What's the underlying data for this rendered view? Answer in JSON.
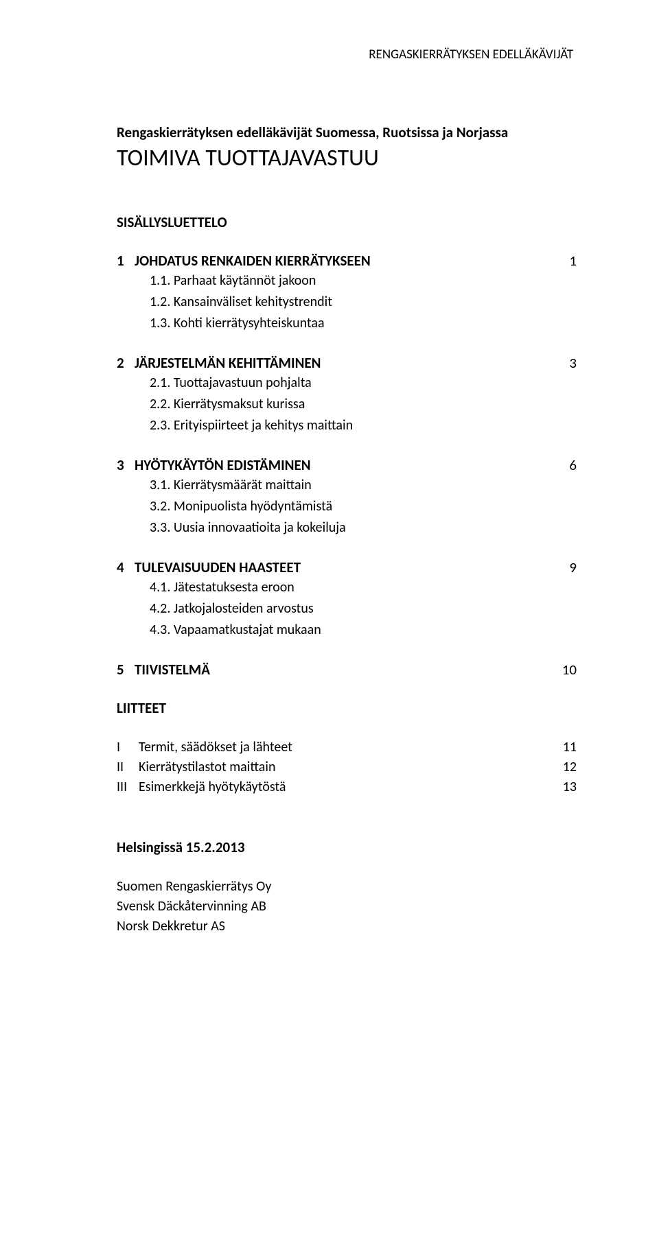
{
  "header": "RENGASKIERRÄTYKSEN EDELLÄKÄVIJÄT",
  "subtitle": "Rengaskierrätyksen edelläkävijät Suomessa, Ruotsissa ja Norjassa",
  "title": "TOIMIVA TUOTTAJAVASTUU",
  "toc_title": "SISÄLLYSLUETTELO",
  "toc": [
    {
      "num": "1",
      "heading": "JOHDATUS RENKAIDEN KIERRÄTYKSEEN",
      "page": "1",
      "subs": [
        "1.1. Parhaat käytännöt jakoon",
        "1.2. Kansainväliset kehitystrendit",
        "1.3. Kohti kierrätysyhteiskuntaa"
      ]
    },
    {
      "num": "2",
      "heading": "JÄRJESTELMÄN KEHITTÄMINEN",
      "page": "3",
      "subs": [
        "2.1. Tuottajavastuun pohjalta",
        "2.2. Kierrätysmaksut kurissa",
        "2.3. Erityispiirteet ja kehitys maittain"
      ]
    },
    {
      "num": "3",
      "heading": "HYÖTYKÄYTÖN EDISTÄMINEN",
      "page": "6",
      "subs": [
        "3.1. Kierrätysmäärät maittain",
        "3.2. Monipuolista hyödyntämistä",
        "3.3. Uusia innovaatioita ja kokeiluja"
      ]
    },
    {
      "num": "4",
      "heading": "TULEVAISUUDEN HAASTEET",
      "page": "9",
      "subs": [
        "4.1. Jätestatuksesta eroon",
        "4.2. Jatkojalosteiden arvostus",
        "4.3. Vapaamatkustajat mukaan"
      ]
    },
    {
      "num": "5",
      "heading": "TIIVISTELMÄ",
      "page": "10",
      "subs": []
    }
  ],
  "liitteet_title": "LIITTEET",
  "appendices": [
    {
      "roman": "I",
      "label": "Termit, säädökset ja lähteet",
      "page": "11"
    },
    {
      "roman": "II",
      "label": "Kierrätystilastot maittain",
      "page": "12"
    },
    {
      "roman": "III",
      "label": "Esimerkkejä hyötykäytöstä",
      "page": "13"
    }
  ],
  "footer": {
    "location": "Helsingissä 15.2.2013",
    "orgs": [
      "Suomen Rengaskierrätys Oy",
      "Svensk Däckåtervinning AB",
      "Norsk Dekkretur AS"
    ]
  }
}
